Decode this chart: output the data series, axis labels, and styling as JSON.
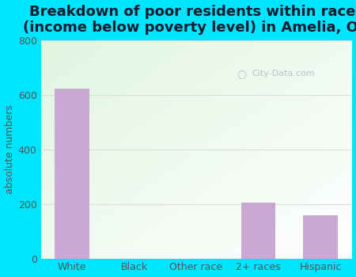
{
  "title": "Breakdown of poor residents within races\n(income below poverty level) in Amelia, OH",
  "categories": [
    "White",
    "Black",
    "Other race",
    "2+ races",
    "Hispanic"
  ],
  "values": [
    625,
    0,
    0,
    205,
    160
  ],
  "bar_color": "#c9a8d4",
  "ylabel": "absolute numbers",
  "ylim": [
    0,
    800
  ],
  "yticks": [
    0,
    200,
    400,
    600,
    800
  ],
  "bg_outer": "#00e5ff",
  "title_fontsize": 13,
  "label_fontsize": 9,
  "tick_fontsize": 9,
  "watermark": "City-Data.com",
  "title_color": "#1a1a2e"
}
